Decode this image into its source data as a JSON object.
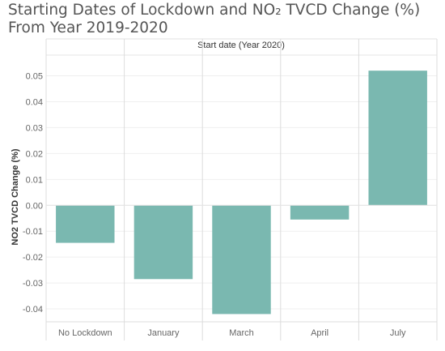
{
  "page": {
    "title_line1": "Starting Dates of Lockdown and NO₂ TVCD Change (%)",
    "title_line2": "From Year 2019-2020"
  },
  "chart_data": {
    "type": "bar",
    "title": "Starting Dates of Lockdown and NO₂ TVCD Change (%) From Year 2019-2020",
    "column_header": "Start date (Year 2020)",
    "xlabel": "",
    "ylabel": "NO2 TVCD Change (%)",
    "categories": [
      "No Lockdown",
      "January",
      "March",
      "April",
      "July"
    ],
    "values": [
      -0.0145,
      -0.0285,
      -0.042,
      -0.0055,
      0.052
    ],
    "ylim": [
      -0.045,
      0.058
    ],
    "yticks": [
      -0.04,
      -0.03,
      -0.02,
      -0.01,
      0.0,
      0.01,
      0.02,
      0.03,
      0.04,
      0.05
    ],
    "ytick_labels": [
      "-0.04",
      "-0.03",
      "-0.02",
      "-0.01",
      "0.00",
      "0.01",
      "0.02",
      "0.03",
      "0.04",
      "0.05"
    ],
    "bar_color": "#7ab8b0",
    "grid": true
  }
}
